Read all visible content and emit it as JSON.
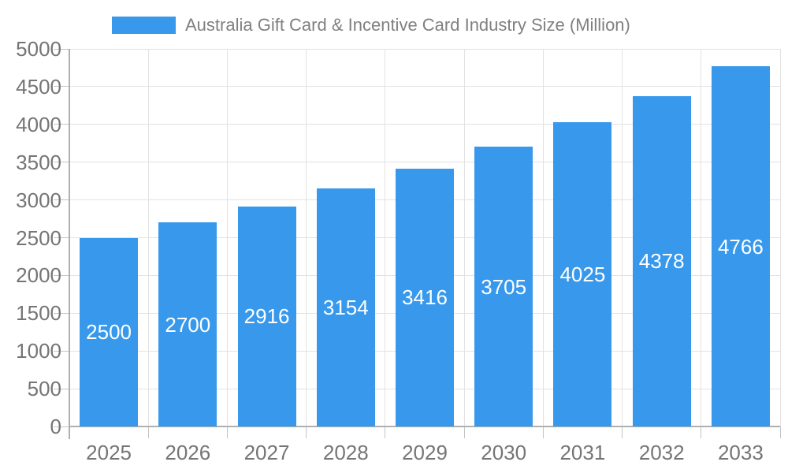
{
  "legend": {
    "label": "Australia Gift Card & Incentive Card Industry Size (Million)"
  },
  "chart_data": {
    "type": "bar",
    "title": "Australia Gift Card & Incentive Card Industry Size (Million)",
    "categories": [
      "2025",
      "2026",
      "2027",
      "2028",
      "2029",
      "2030",
      "2031",
      "2032",
      "2033"
    ],
    "series": [
      {
        "name": "Australia Gift Card & Incentive Card Industry Size (Million)",
        "values": [
          2500,
          2700,
          2916,
          3154,
          3416,
          3705,
          4025,
          4378,
          4766
        ]
      }
    ],
    "bar_labels": [
      "2500",
      "2700",
      "2916",
      "3154",
      "3416",
      "3705",
      "4025",
      "4378",
      "4766"
    ],
    "xlabel": "",
    "ylabel": "",
    "ylim": [
      0,
      5000
    ],
    "ytick_step": 500,
    "ytick_labels": [
      "0",
      "500",
      "1000",
      "1500",
      "2000",
      "2500",
      "3000",
      "3500",
      "4000",
      "4500",
      "5000"
    ],
    "grid": true,
    "legend_position": "top-center",
    "colors": {
      "bar": "#3899EC",
      "bar_label_text": "#FFFFFF",
      "axis_line": "#B0B0B0",
      "tick_line": "#C4C4C4",
      "gridline": "#E2E2E2",
      "axis_label_text": "#757575",
      "legend_text": "#808080",
      "background": "#FFFFFF"
    }
  }
}
